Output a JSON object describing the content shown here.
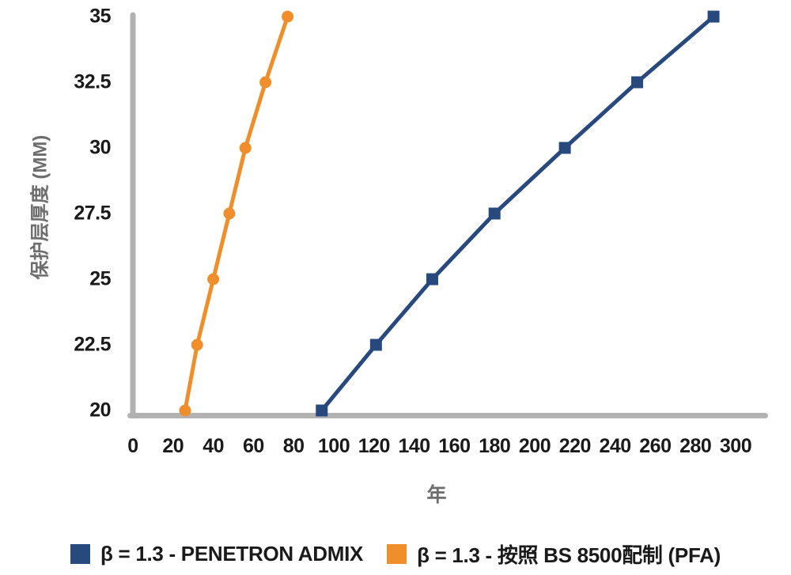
{
  "colors": {
    "penetron_blue": "#27497E",
    "bs8500_orange": "#EF8E2B",
    "axis_gray": "#B2B2B2",
    "tick_text": "#1A1A1A",
    "axis_title_gray": "#6E6E6E"
  },
  "chart_data": {
    "type": "line",
    "title": "",
    "xlabel": "年",
    "ylabel": "保护层厚度 (MM)",
    "x_ticks": [
      0,
      20,
      40,
      60,
      80,
      100,
      120,
      140,
      160,
      180,
      200,
      220,
      240,
      260,
      280,
      300
    ],
    "y_ticks": [
      20,
      22.5,
      25,
      27.5,
      30,
      32.5,
      35
    ],
    "xlim": [
      0,
      315
    ],
    "ylim": [
      20,
      35
    ],
    "grid": false,
    "legend_position": "bottom",
    "series": [
      {
        "name": "β = 1.3 - PENETRON ADMIX",
        "color": "#27497E",
        "marker": "square",
        "points": [
          [
            94,
            20
          ],
          [
            121,
            22.5
          ],
          [
            149,
            25
          ],
          [
            180,
            27.5
          ],
          [
            215,
            30
          ],
          [
            251,
            32.5
          ],
          [
            289,
            35
          ]
        ]
      },
      {
        "name": "β = 1.3 - 按照 BS 8500配制 (PFA)",
        "color": "#EF8E2B",
        "marker": "circle",
        "points": [
          [
            26,
            20
          ],
          [
            32,
            22.5
          ],
          [
            40,
            25
          ],
          [
            48,
            27.5
          ],
          [
            56,
            30
          ],
          [
            66,
            32.5
          ],
          [
            77,
            35
          ]
        ]
      }
    ]
  }
}
